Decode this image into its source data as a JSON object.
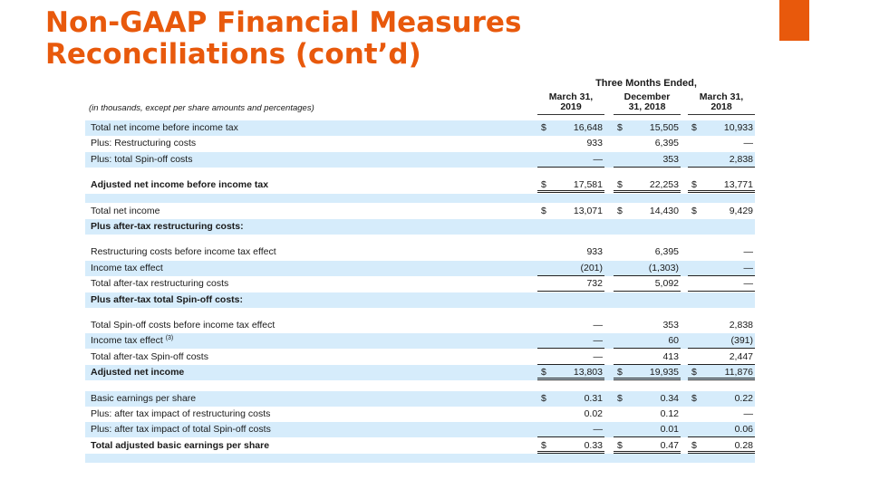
{
  "slide": {
    "title_line1": "Non-GAAP Financial Measures",
    "title_line2": "Reconciliations (cont’d)"
  },
  "table": {
    "period_header": "Three Months Ended,",
    "units_note": "(in thousands, except per share amounts and percentages)",
    "columns": [
      {
        "line1": "March 31,",
        "line2": "2019"
      },
      {
        "line1": "December",
        "line2": "31, 2018"
      },
      {
        "line1": "March 31,",
        "line2": "2018"
      }
    ],
    "rows": [
      {
        "label": "Total net income before income tax",
        "band": true,
        "values": [
          {
            "cur": "$",
            "v": "16,648"
          },
          {
            "cur": "$",
            "v": "15,505"
          },
          {
            "cur": "$",
            "v": "10,933"
          }
        ]
      },
      {
        "label": "Plus: Restructuring costs",
        "values": [
          {
            "v": "933"
          },
          {
            "v": "6,395"
          },
          {
            "v": "—"
          }
        ]
      },
      {
        "label": "Plus: total Spin-off costs",
        "band": true,
        "values": [
          {
            "v": "—",
            "rule": "under"
          },
          {
            "v": "353",
            "rule": "under"
          },
          {
            "v": "2,838",
            "rule": "under"
          }
        ]
      },
      {
        "spacer": true
      },
      {
        "label": "Adjusted net income before income tax",
        "bold": true,
        "values": [
          {
            "cur": "$",
            "v": "17,581",
            "rule": "dbl"
          },
          {
            "cur": "$",
            "v": "22,253",
            "rule": "dbl"
          },
          {
            "cur": "$",
            "v": "13,771",
            "rule": "dbl"
          }
        ]
      },
      {
        "spacer": true,
        "band": true
      },
      {
        "label": "Total net income",
        "values": [
          {
            "cur": "$",
            "v": "13,071"
          },
          {
            "cur": "$",
            "v": "14,430"
          },
          {
            "cur": "$",
            "v": "9,429"
          }
        ]
      },
      {
        "label": "Plus after-tax restructuring costs:",
        "bold": true,
        "band": true,
        "values": []
      },
      {
        "spacer": true
      },
      {
        "label": "Restructuring costs before income tax effect",
        "values": [
          {
            "v": "933"
          },
          {
            "v": "6,395"
          },
          {
            "v": "—"
          }
        ]
      },
      {
        "label": "Income tax effect",
        "band": true,
        "values": [
          {
            "v": "(201)",
            "rule": "under"
          },
          {
            "v": "(1,303)",
            "rule": "under"
          },
          {
            "v": "—",
            "rule": "under"
          }
        ]
      },
      {
        "label": "Total after-tax restructuring costs",
        "values": [
          {
            "v": "732",
            "rule": "under"
          },
          {
            "v": "5,092",
            "rule": "under"
          },
          {
            "v": "—",
            "rule": "under"
          }
        ]
      },
      {
        "label": "Plus after-tax total Spin-off costs:",
        "bold": true,
        "band": true,
        "values": []
      },
      {
        "spacer": true
      },
      {
        "label": "Total Spin-off costs before income tax effect",
        "values": [
          {
            "v": "—"
          },
          {
            "v": "353"
          },
          {
            "v": "2,838"
          }
        ]
      },
      {
        "label": "Income tax effect",
        "footnote": "(3)",
        "band": true,
        "values": [
          {
            "v": "—",
            "rule": "under"
          },
          {
            "v": "60",
            "rule": "under"
          },
          {
            "v": "(391)",
            "rule": "under"
          }
        ]
      },
      {
        "label": "Total after-tax Spin-off costs",
        "values": [
          {
            "v": "—",
            "rule": "under"
          },
          {
            "v": "413",
            "rule": "under"
          },
          {
            "v": "2,447",
            "rule": "under"
          }
        ]
      },
      {
        "label": "Adjusted net income",
        "bold": true,
        "band": true,
        "values": [
          {
            "cur": "$",
            "v": "13,803",
            "rule": "dbl"
          },
          {
            "cur": "$",
            "v": "19,935",
            "rule": "dbl"
          },
          {
            "cur": "$",
            "v": "11,876",
            "rule": "dbl"
          }
        ]
      },
      {
        "spacer": true
      },
      {
        "label": "Basic earnings per share",
        "band": true,
        "values": [
          {
            "cur": "$",
            "v": "0.31"
          },
          {
            "cur": "$",
            "v": "0.34"
          },
          {
            "cur": "$",
            "v": "0.22"
          }
        ]
      },
      {
        "label": "Plus: after tax impact of restructuring costs",
        "values": [
          {
            "v": "0.02"
          },
          {
            "v": "0.12"
          },
          {
            "v": "—"
          }
        ]
      },
      {
        "label": "Plus: after tax impact of total Spin-off costs",
        "band": true,
        "values": [
          {
            "v": "—",
            "rule": "under"
          },
          {
            "v": "0.01",
            "rule": "under"
          },
          {
            "v": "0.06",
            "rule": "under"
          }
        ]
      },
      {
        "label": "Total adjusted basic earnings per share",
        "bold": true,
        "values": [
          {
            "cur": "$",
            "v": "0.33",
            "rule": "dbl"
          },
          {
            "cur": "$",
            "v": "0.47",
            "rule": "dbl"
          },
          {
            "cur": "$",
            "v": "0.28",
            "rule": "dbl"
          }
        ]
      },
      {
        "spacer": true,
        "band": true
      }
    ]
  }
}
